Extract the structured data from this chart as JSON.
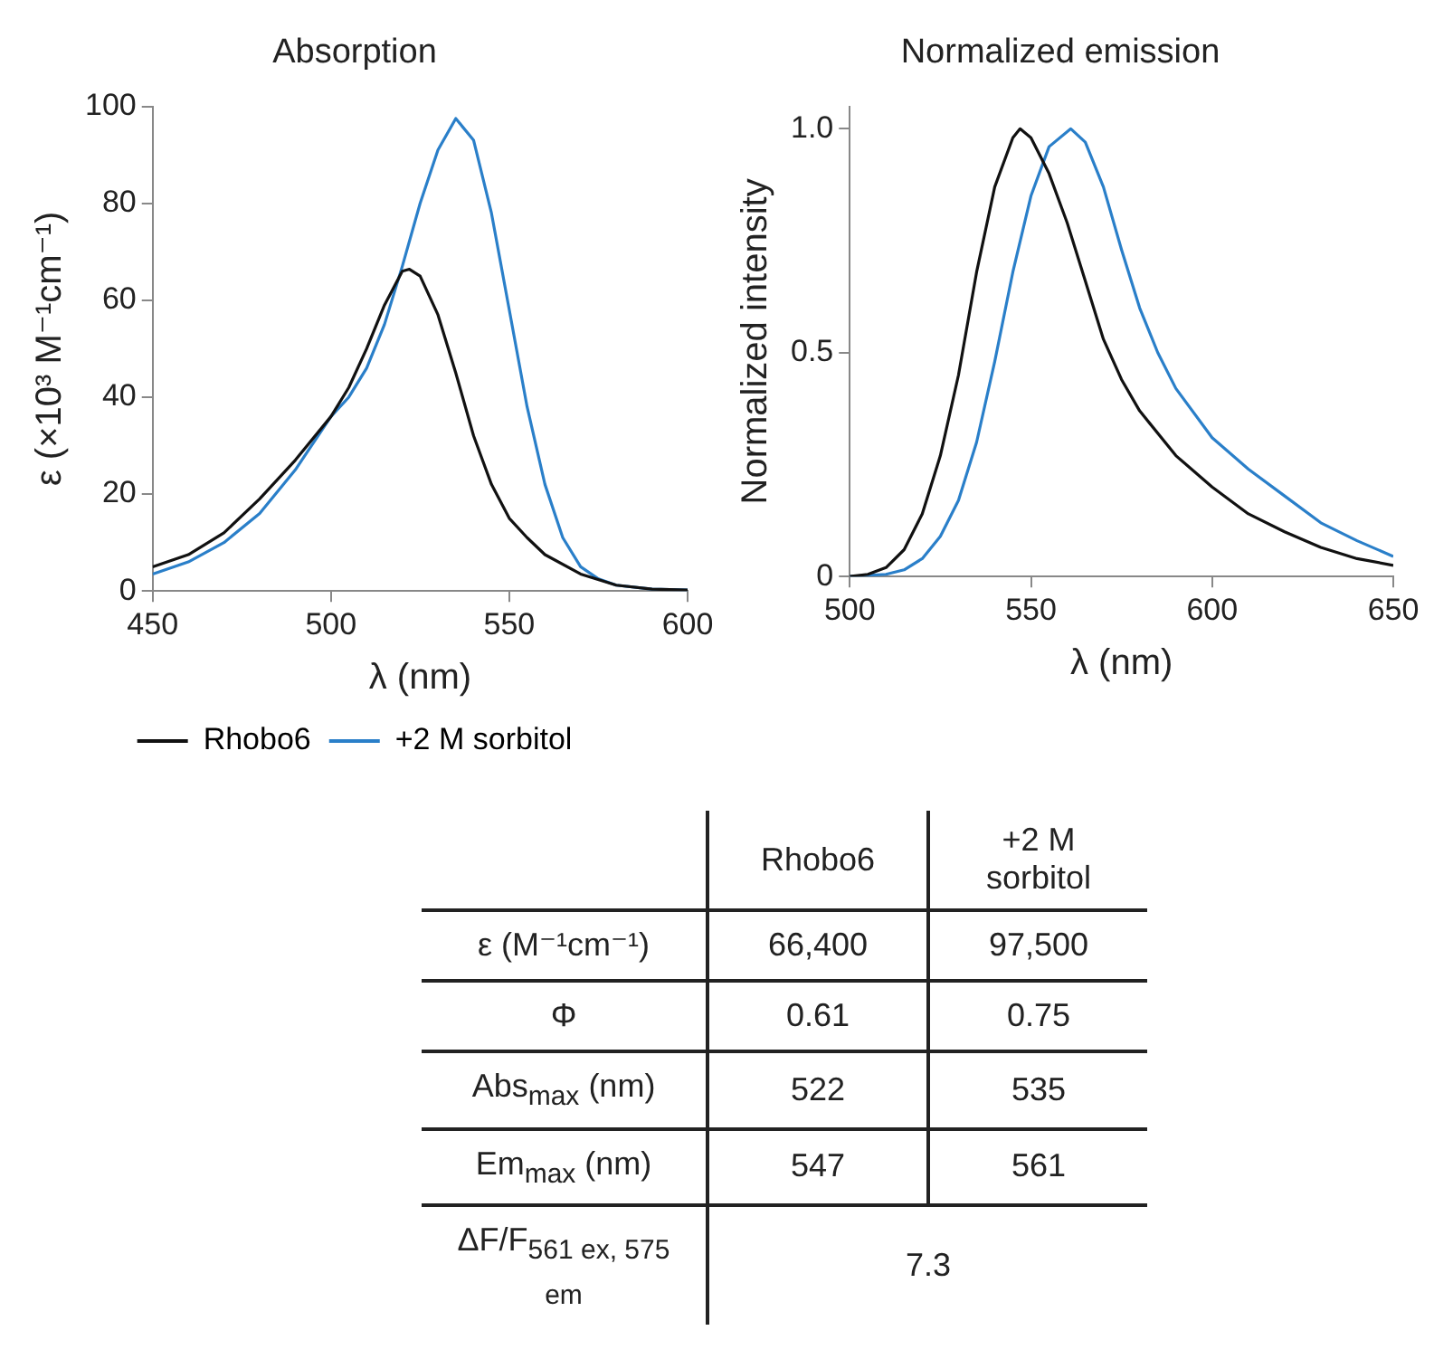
{
  "chart_data": [
    {
      "type": "line",
      "title": "Absorption",
      "xlabel": "λ (nm)",
      "ylabel": "ε (×10³ M⁻¹cm⁻¹)",
      "xlim": [
        450,
        600
      ],
      "xticks": [
        450,
        500,
        550,
        600
      ],
      "ylim": [
        0,
        100
      ],
      "yticks": [
        0,
        20,
        40,
        60,
        80,
        100
      ],
      "grid": false,
      "legend": "bottom",
      "marker": "none",
      "line_style": "solid",
      "series": [
        {
          "name": "Rhobo6",
          "color": "#111111",
          "x": [
            450,
            460,
            470,
            480,
            490,
            500,
            505,
            510,
            515,
            520,
            522,
            525,
            530,
            535,
            540,
            545,
            550,
            555,
            560,
            570,
            580,
            590,
            600
          ],
          "values": [
            5,
            7.5,
            12,
            19,
            27,
            36,
            42,
            50,
            59,
            66,
            66.4,
            65,
            57,
            45,
            32,
            22,
            15,
            11,
            7.5,
            3.5,
            1.2,
            0.4,
            0.2
          ]
        },
        {
          "name": "+2 M sorbitol",
          "color": "#2a7fc9",
          "x": [
            450,
            460,
            470,
            480,
            490,
            500,
            505,
            510,
            515,
            520,
            525,
            530,
            535,
            540,
            545,
            550,
            555,
            560,
            565,
            570,
            575,
            580,
            590,
            600
          ],
          "values": [
            3.5,
            6,
            10,
            16,
            25,
            36,
            40,
            46,
            55,
            67,
            80,
            91,
            97.5,
            93,
            78,
            58,
            38,
            22,
            11,
            5,
            2.5,
            1.2,
            0.4,
            0.2
          ]
        }
      ]
    },
    {
      "type": "line",
      "title": "Normalized emission",
      "xlabel": "λ (nm)",
      "ylabel": "Normalized intensity",
      "xlim": [
        500,
        650
      ],
      "xticks": [
        500,
        550,
        600,
        650
      ],
      "ylim": [
        0,
        1.05
      ],
      "yticks": [
        0,
        0.5,
        {
          "value": 1,
          "label": "1.0"
        }
      ],
      "grid": false,
      "marker": "none",
      "line_style": "solid",
      "series": [
        {
          "color": "#111111",
          "x": [
            500,
            505,
            510,
            515,
            520,
            525,
            530,
            535,
            540,
            545,
            547,
            550,
            555,
            560,
            565,
            570,
            575,
            580,
            590,
            600,
            610,
            620,
            630,
            640,
            650
          ],
          "values": [
            0,
            0.005,
            0.02,
            0.06,
            0.14,
            0.27,
            0.45,
            0.68,
            0.87,
            0.98,
            1,
            0.98,
            0.9,
            0.79,
            0.66,
            0.53,
            0.44,
            0.37,
            0.27,
            0.2,
            0.14,
            0.1,
            0.065,
            0.04,
            0.025
          ]
        },
        {
          "color": "#2a7fc9",
          "x": [
            500,
            510,
            515,
            520,
            525,
            530,
            535,
            540,
            545,
            550,
            555,
            561,
            565,
            570,
            575,
            580,
            585,
            590,
            600,
            610,
            620,
            630,
            640,
            650
          ],
          "values": [
            0,
            0.005,
            0.015,
            0.04,
            0.09,
            0.17,
            0.3,
            0.48,
            0.68,
            0.85,
            0.96,
            1,
            0.97,
            0.87,
            0.73,
            0.6,
            0.5,
            0.42,
            0.31,
            0.24,
            0.18,
            0.12,
            0.08,
            0.045
          ]
        }
      ]
    },
    {
      "type": "other",
      "categories": [
        "Rhobo6",
        "+2 M sorbitol"
      ],
      "y_categories": [
        "ε (M⁻¹cm⁻¹)",
        "Φ",
        "Abs$_{max}$ (nm)",
        "Em$_{max}$ (nm)",
        "ΔF/F$_{561 ex, 575 em}$"
      ],
      "cell_labels": [
        [
          "66,400",
          "97,500"
        ],
        [
          "0.61",
          "0.75"
        ],
        [
          "522",
          "535"
        ],
        [
          "547",
          "561"
        ],
        [
          "7.3",
          null
        ]
      ]
    }
  ]
}
